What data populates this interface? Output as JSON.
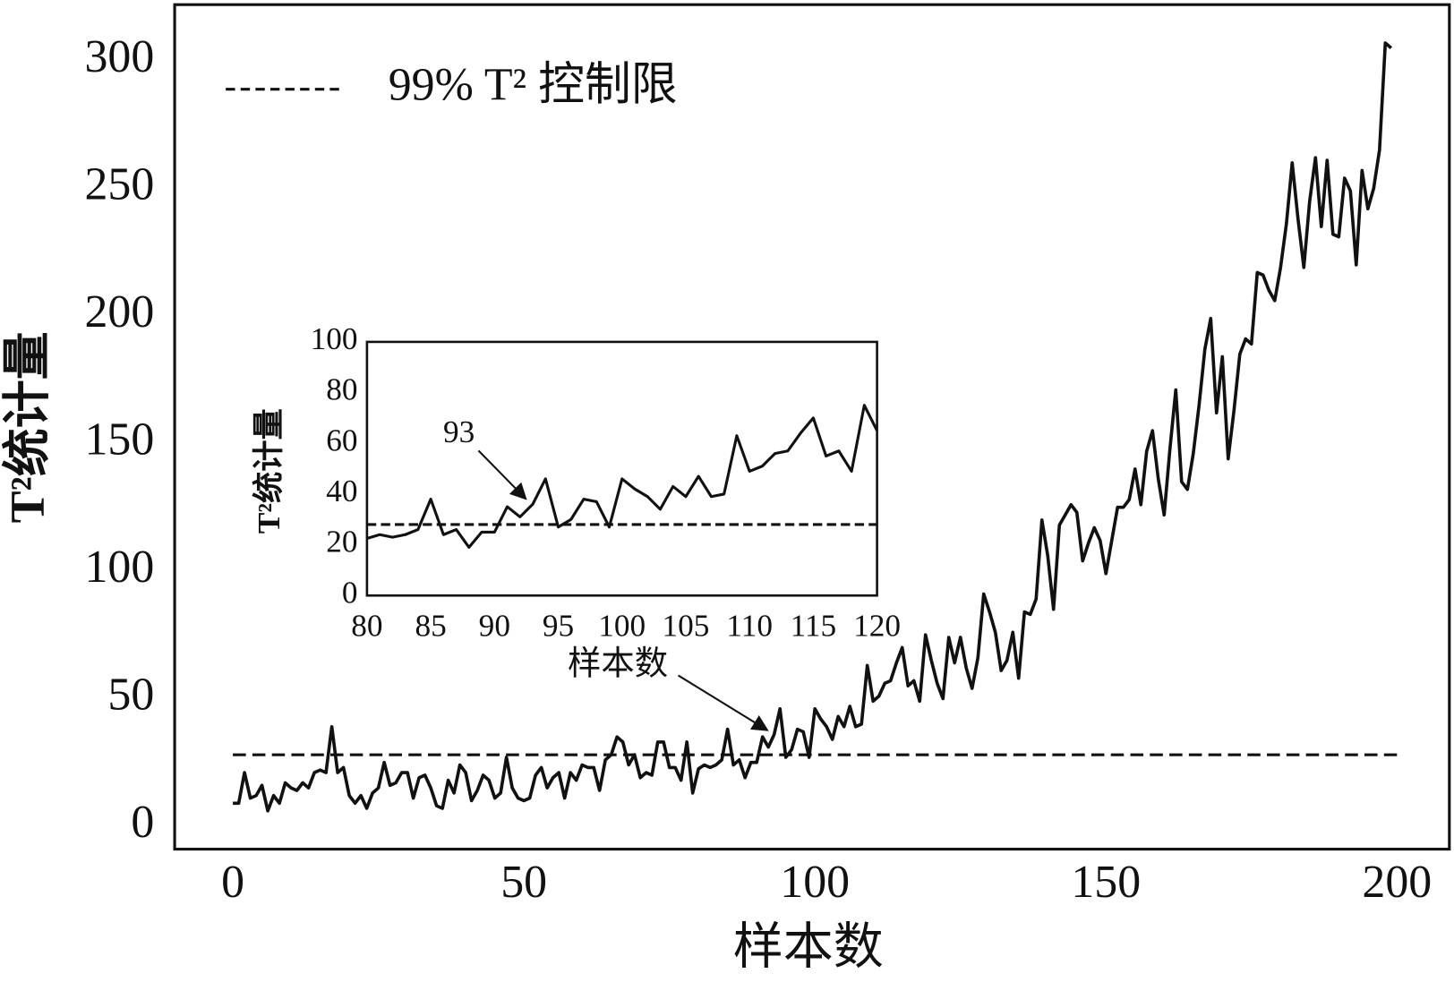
{
  "chart_data": [
    {
      "type": "line",
      "xlabel": "样本数",
      "ylabel": "T²统计量",
      "xlim": [
        -10,
        209
      ],
      "ylim": [
        -9,
        322
      ],
      "xticks": [
        0,
        50,
        100,
        150,
        200
      ],
      "yticks": [
        0,
        50,
        100,
        150,
        200,
        250,
        300
      ],
      "legend": "upper left",
      "control_limit": {
        "name": "99% T² 控制限",
        "value": 28,
        "color": "#111111"
      },
      "series": [
        {
          "color": "#111111",
          "x": [
            0,
            1,
            2,
            3,
            4,
            5,
            6,
            7,
            8,
            9,
            10,
            11,
            12,
            13,
            14,
            15,
            16,
            17,
            18,
            19,
            20,
            21,
            22,
            23,
            24,
            25,
            26,
            27,
            28,
            29,
            30,
            31,
            32,
            33,
            34,
            35,
            36,
            37,
            38,
            39,
            40,
            41,
            42,
            43,
            44,
            45,
            46,
            47,
            48,
            49,
            50,
            51,
            52,
            53,
            54,
            55,
            56,
            57,
            58,
            59,
            60,
            61,
            62,
            63,
            64,
            65,
            66,
            67,
            68,
            69,
            70,
            71,
            72,
            73,
            74,
            75,
            76,
            77,
            78,
            79,
            80,
            81,
            82,
            83,
            84,
            85,
            86,
            87,
            88,
            89,
            90,
            91,
            92,
            93,
            94,
            95,
            96,
            97,
            98,
            99,
            100,
            101,
            102,
            103,
            104,
            105,
            106,
            107,
            108,
            109,
            110,
            111,
            112,
            113,
            114,
            115,
            116,
            117,
            118,
            119,
            120,
            121,
            122,
            123,
            124,
            125,
            126,
            127,
            128,
            129,
            130,
            131,
            132,
            133,
            134,
            135,
            136,
            137,
            138,
            139,
            140,
            141,
            142,
            143,
            144,
            145,
            146,
            147,
            148,
            149,
            150,
            151,
            152,
            153,
            154,
            155,
            156,
            157,
            158,
            159,
            160,
            161,
            162,
            163,
            164,
            165,
            166,
            167,
            168,
            169,
            170,
            171,
            172,
            173,
            174,
            175,
            176,
            177,
            178,
            179,
            180,
            181,
            182,
            183,
            184,
            185,
            186,
            187,
            188,
            189,
            190,
            191,
            192,
            193,
            194,
            195,
            196,
            197,
            198,
            199
          ],
          "values": [
            9,
            9,
            21,
            11,
            12,
            16,
            6,
            12,
            9,
            17,
            15,
            14,
            17,
            15,
            21,
            22,
            21,
            39,
            21,
            23,
            12,
            9,
            12,
            7,
            13,
            15,
            25,
            16,
            17,
            21,
            21,
            11,
            19,
            20,
            15,
            8,
            7,
            18,
            13,
            24,
            21,
            10,
            14,
            20,
            18,
            11,
            13,
            27,
            15,
            11,
            10,
            11,
            20,
            23,
            15,
            19,
            21,
            11,
            21,
            18,
            24,
            23,
            23,
            14,
            26,
            28,
            35,
            33,
            24,
            28,
            19,
            21,
            20,
            33,
            33,
            23,
            23,
            18,
            33,
            13,
            22.5,
            24,
            23,
            24,
            26,
            38,
            24,
            26,
            19,
            25,
            25,
            35,
            31,
            36,
            46,
            27,
            30,
            38,
            37,
            27,
            46,
            42,
            39,
            34,
            43,
            39,
            47,
            39,
            40,
            63,
            49,
            51,
            56,
            57,
            64,
            70,
            55,
            57,
            49,
            75,
            65,
            56,
            50,
            74,
            64,
            74,
            62,
            54,
            66,
            91,
            84,
            76,
            61,
            65,
            76,
            58,
            84,
            83,
            89,
            120,
            106,
            85,
            118,
            122,
            126,
            123,
            104,
            111,
            117,
            112,
            99,
            112,
            125,
            125,
            128,
            140,
            126,
            147,
            155,
            136,
            122,
            148,
            171,
            135,
            132,
            146,
            165,
            187,
            199,
            162,
            184,
            144,
            163,
            185,
            191,
            189,
            217,
            216,
            210,
            206,
            219,
            236,
            260,
            238,
            219,
            245,
            262,
            235,
            261,
            232,
            231,
            254,
            249,
            220,
            257,
            242,
            250,
            265,
            307,
            305
          ]
        }
      ]
    },
    {
      "type": "line",
      "xlabel": "样本数",
      "ylabel": "T²统计量",
      "xlim": [
        80,
        120
      ],
      "ylim": [
        0,
        100
      ],
      "xticks": [
        80,
        85,
        90,
        95,
        100,
        105,
        110,
        115,
        120
      ],
      "yticks": [
        0,
        20,
        40,
        60,
        80,
        100
      ],
      "control_limit": {
        "value": 28,
        "color": "#111111"
      },
      "annotation": "93",
      "series": [
        {
          "color": "#111111",
          "x": [
            80,
            81,
            82,
            83,
            84,
            85,
            86,
            87,
            88,
            89,
            90,
            91,
            92,
            93,
            94,
            95,
            96,
            97,
            98,
            99,
            100,
            101,
            102,
            103,
            104,
            105,
            106,
            107,
            108,
            109,
            110,
            111,
            112,
            113,
            114,
            115,
            116,
            117,
            118,
            119,
            120
          ],
          "values": [
            22.5,
            24,
            23,
            24,
            26,
            38,
            24,
            26,
            19,
            25,
            25,
            35,
            31,
            36,
            46,
            27,
            30,
            38,
            37,
            27,
            46,
            42,
            39,
            34,
            43,
            39,
            47,
            39,
            40,
            63,
            49,
            51,
            56,
            57,
            64,
            70,
            55,
            57,
            49,
            75,
            65
          ]
        }
      ]
    }
  ]
}
